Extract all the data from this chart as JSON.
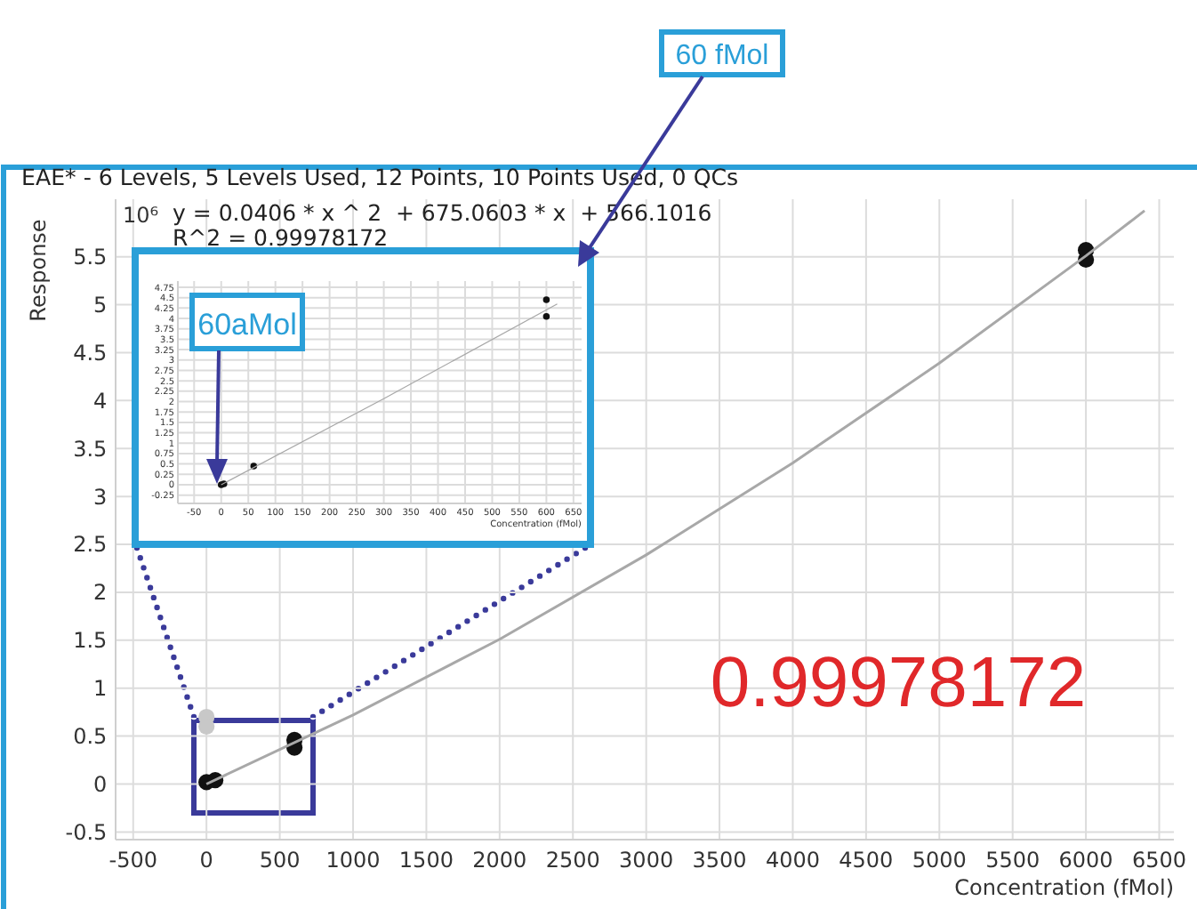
{
  "chart_data": [
    {
      "type": "scatter",
      "title": "EAE* - 6 Levels, 5 Levels Used, 12 Points, 10 Points Used, 0 QCs",
      "xlabel": "Concentration (fMol)",
      "ylabel": "Response",
      "xlim": [
        -620,
        6600
      ],
      "ylim": [
        -0.58,
        6.1
      ],
      "xticks": [
        -500,
        0,
        500,
        1000,
        1500,
        2000,
        2500,
        3000,
        3500,
        4000,
        4500,
        5000,
        5500,
        6000,
        6500
      ],
      "yticks": [
        -0.5,
        0,
        0.5,
        1,
        1.5,
        2,
        2.5,
        3,
        3.5,
        4,
        4.5,
        5,
        5.5
      ],
      "grid": true,
      "marker": "circle",
      "series": [
        {
          "color": "#111111",
          "x": [
            0,
            60,
            600,
            600,
            6000,
            6000
          ],
          "values": [
            0.02,
            0.04,
            0.46,
            0.38,
            5.47,
            5.57
          ]
        },
        {
          "color": "#c8c8c8",
          "x": [
            0,
            0
          ],
          "values": [
            0.7,
            0.6
          ]
        },
        {
          "type": "line",
          "marker": "none",
          "color": "#a8a8a8",
          "x": [
            0,
            1000,
            2000,
            3000,
            4000,
            5000,
            6000,
            6400
          ],
          "values": [
            0.0,
            0.72,
            1.51,
            2.39,
            3.35,
            4.39,
            5.51,
            5.98
          ]
        }
      ],
      "annotations": [
        "10⁶",
        "y = 0.0406 * x ^ 2  + 675.0603 * x  + 566.1016",
        "R^2 = 0.99978172",
        "0.99978172",
        "60 fMol"
      ]
    },
    {
      "type": "scatter",
      "xlabel": "Concentration (fMol)",
      "xlim": [
        -80,
        665
      ],
      "ylim": [
        -0.45,
        4.9
      ],
      "xticks": [
        -50,
        0,
        50,
        100,
        150,
        200,
        250,
        300,
        350,
        400,
        450,
        500,
        550,
        600,
        650
      ],
      "yticks": [
        -0.25,
        0,
        0.25,
        0.5,
        0.75,
        1,
        1.25,
        1.5,
        1.75,
        2,
        2.25,
        2.5,
        2.75,
        3,
        3.25,
        3.5,
        3.75,
        4,
        4.25,
        4.5,
        4.75
      ],
      "grid": true,
      "marker": "circle",
      "series": [
        {
          "color": "#111111",
          "x": [
            0,
            5,
            60,
            600,
            600
          ],
          "values": [
            0.0,
            0.02,
            0.45,
            4.45,
            4.05
          ]
        },
        {
          "type": "line",
          "marker": "none",
          "color": "#a8a8a8",
          "x": [
            0,
            300,
            620
          ],
          "values": [
            0.0,
            2.07,
            4.35
          ]
        }
      ],
      "annotations": [
        "60aMol"
      ]
    }
  ]
}
